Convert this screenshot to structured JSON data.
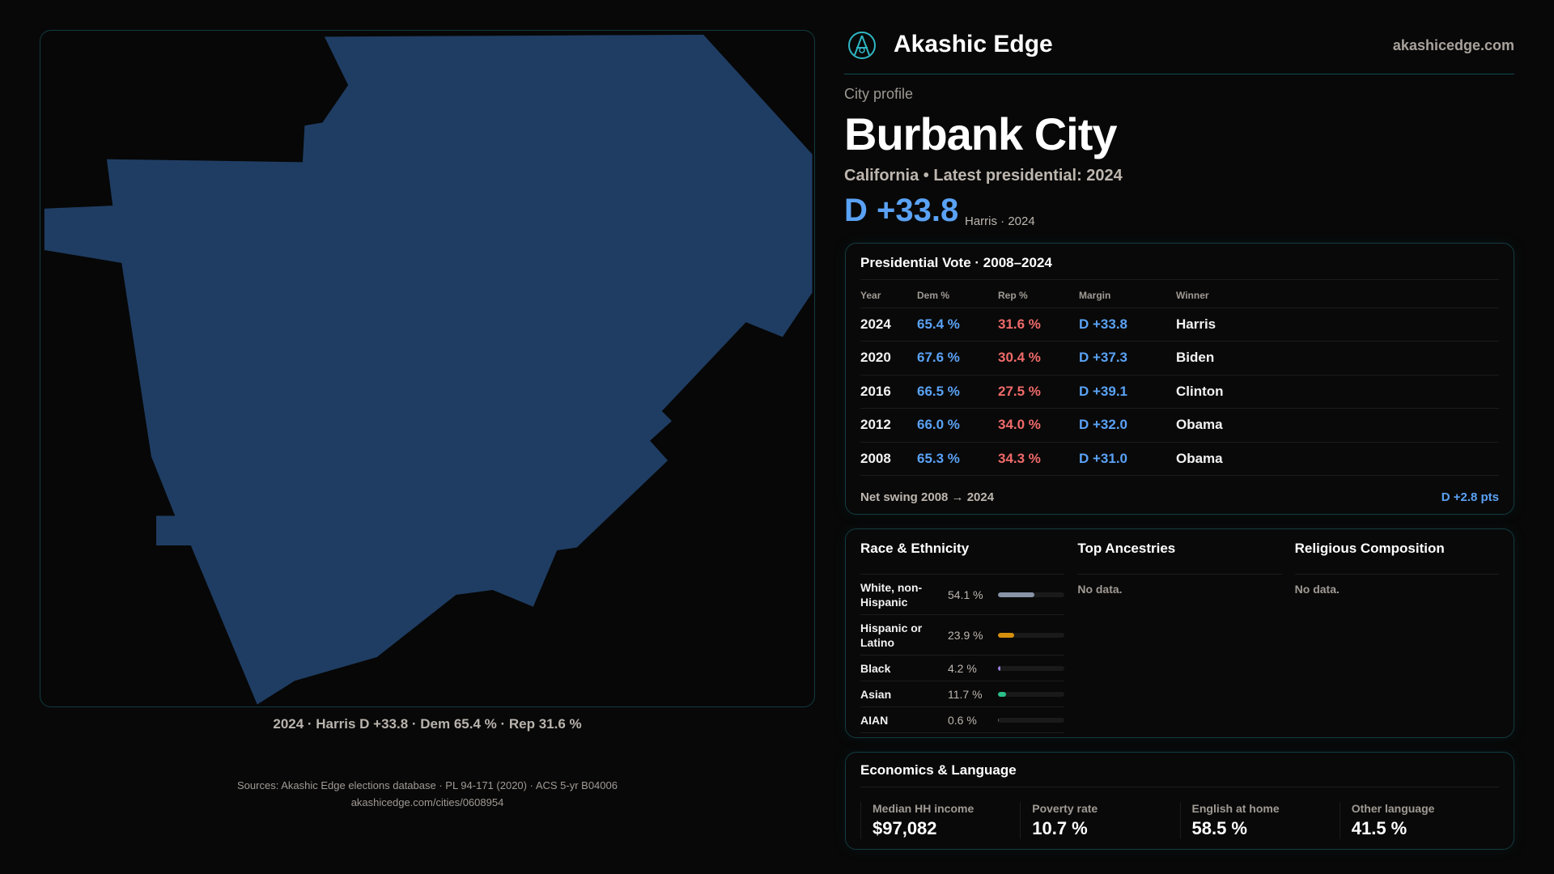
{
  "brand": {
    "name": "Akashic Edge",
    "site": "akashicedge.com",
    "logo_icon": "compass-emblem-icon"
  },
  "profile": {
    "kicker": "City profile",
    "city": "Burbank City",
    "subtitle": "California • Latest presidential: 2024",
    "margin": "D +33.8",
    "margin_note": "Harris · 2024"
  },
  "map": {
    "fill_color": "#1f3d63",
    "caption": "2024 · Harris D +33.8 · Dem 65.4 % · Rep 31.6 %"
  },
  "vote": {
    "title": "Presidential Vote · 2008–2024",
    "headers": [
      "Year",
      "Dem %",
      "Rep %",
      "Margin",
      "Winner"
    ],
    "rows": [
      [
        "2024",
        "65.4 %",
        "31.6 %",
        "D +33.8",
        "Harris"
      ],
      [
        "2020",
        "67.6 %",
        "30.4 %",
        "D +37.3",
        "Biden"
      ],
      [
        "2016",
        "66.5 %",
        "27.5 %",
        "D +39.1",
        "Clinton"
      ],
      [
        "2012",
        "66.0 %",
        "34.0 %",
        "D +32.0",
        "Obama"
      ],
      [
        "2008",
        "65.3 %",
        "34.3 %",
        "D +31.0",
        "Obama"
      ]
    ],
    "swing_label": "Net swing 2008 → 2024",
    "swing_value": "D +2.8 pts"
  },
  "race": {
    "title": "Race & Ethnicity",
    "rows": [
      {
        "label": "White, non-Hispanic",
        "pct": "54.1 %",
        "value": 54.1,
        "color": "#8893a8"
      },
      {
        "label": "Hispanic or Latino",
        "pct": "23.9 %",
        "value": 23.9,
        "color": "#d4900c"
      },
      {
        "label": "Black",
        "pct": "4.2 %",
        "value": 4.2,
        "color": "#9b7fe0"
      },
      {
        "label": "Asian",
        "pct": "11.7 %",
        "value": 11.7,
        "color": "#2bbf8a"
      },
      {
        "label": "AIAN",
        "pct": "0.6 %",
        "value": 0.6,
        "color": "#666666"
      }
    ]
  },
  "ancestries": {
    "title": "Top Ancestries",
    "empty": "No data."
  },
  "religion": {
    "title": "Religious Composition",
    "empty": "No data."
  },
  "econ": {
    "title": "Economics & Language",
    "stats": [
      {
        "label": "Median HH income",
        "value": "$97,082"
      },
      {
        "label": "Poverty rate",
        "value": "10.7 %"
      },
      {
        "label": "English at home",
        "value": "58.5 %"
      },
      {
        "label": "Other language",
        "value": "41.5 %"
      }
    ]
  },
  "source": {
    "line1": "Sources: Akashic Edge elections database · PL 94-171 (2020) · ACS 5-yr B04006",
    "line2": "akashicedge.com/cities/0608954"
  }
}
